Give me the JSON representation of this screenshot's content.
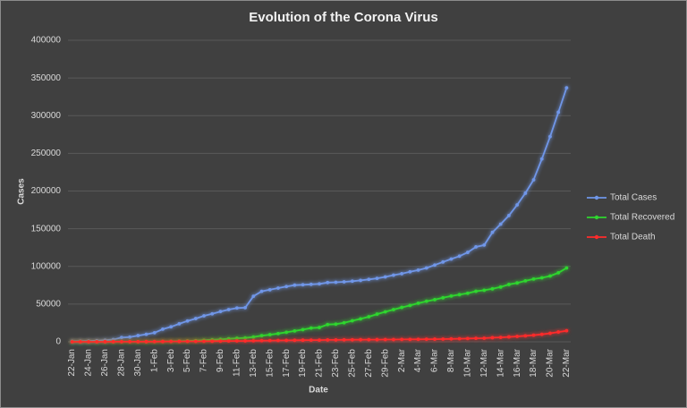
{
  "chart_data": {
    "type": "line",
    "title": "Evolution of the Corona Virus",
    "x_label": "Date",
    "y_label": "Cases",
    "categories": [
      "22-Jan",
      null,
      "24-Jan",
      null,
      "26-Jan",
      null,
      "28-Jan",
      null,
      "30-Jan",
      null,
      "1-Feb",
      null,
      "3-Feb",
      null,
      "5-Feb",
      null,
      "7-Feb",
      null,
      "9-Feb",
      null,
      "11-Feb",
      null,
      "13-Feb",
      null,
      "15-Feb",
      null,
      "17-Feb",
      null,
      "19-Feb",
      null,
      "21-Feb",
      null,
      "23-Feb",
      null,
      "25-Feb",
      null,
      "27-Feb",
      null,
      "29-Feb",
      null,
      "2-Mar",
      null,
      "4-Mar",
      null,
      "6-Mar",
      null,
      "8-Mar",
      null,
      "10-Mar",
      null,
      "12-Mar",
      null,
      "14-Mar",
      null,
      "16-Mar",
      null,
      "18-Mar",
      null,
      "20-Mar",
      null,
      "22-Mar"
    ],
    "series": [
      {
        "name": "Total Cases",
        "color": "#6f96e8",
        "values": [
          555,
          654,
          941,
          1434,
          2118,
          2927,
          5578,
          6166,
          8234,
          9927,
          12038,
          16787,
          19881,
          23892,
          27635,
          30794,
          34391,
          37120,
          40150,
          42762,
          44802,
          45221,
          60368,
          66885,
          69030,
          71224,
          73258,
          75136,
          75639,
          76197,
          76819,
          78572,
          78958,
          79561,
          80406,
          81388,
          82746,
          84112,
          86011,
          88369,
          90306,
          92840,
          95120,
          97886,
          101801,
          105847,
          109821,
          113590,
          118620,
          125875,
          128352,
          145205,
          156101,
          167454,
          181574,
          197102,
          214821,
          242570,
          272208,
          304507,
          336953
        ]
      },
      {
        "name": "Total Recovered",
        "color": "#2ed62e",
        "values": [
          28,
          30,
          36,
          39,
          52,
          61,
          107,
          126,
          143,
          222,
          284,
          472,
          623,
          852,
          1124,
          1487,
          2011,
          2616,
          3244,
          3946,
          4683,
          5150,
          6295,
          8058,
          9395,
          10865,
          12583,
          14352,
          16121,
          18177,
          18890,
          22886,
          23394,
          25227,
          27905,
          30384,
          33277,
          36711,
          39782,
          42716,
          45602,
          48228,
          51170,
          53796,
          55865,
          58358,
          60695,
          62512,
          64404,
          67003,
          68324,
          70251,
          72624,
          76034,
          78088,
          80840,
          83207,
          84854,
          87256,
          91499,
          97882
        ]
      },
      {
        "name": "Total Death",
        "color": "#ff2b2b",
        "values": [
          17,
          18,
          26,
          42,
          56,
          82,
          131,
          133,
          171,
          213,
          259,
          362,
          426,
          492,
          564,
          634,
          719,
          806,
          906,
          1013,
          1113,
          1118,
          1371,
          1523,
          1666,
          1770,
          1868,
          2007,
          2122,
          2247,
          2251,
          2458,
          2469,
          2629,
          2708,
          2770,
          2814,
          2872,
          2941,
          2996,
          3085,
          3160,
          3254,
          3348,
          3460,
          3558,
          3802,
          3988,
          4262,
          4615,
          4720,
          5404,
          5819,
          6440,
          7126,
          7905,
          8733,
          9867,
          11299,
          12973,
          14651
        ]
      }
    ],
    "ylim": [
      0,
      400000
    ],
    "yticks": [
      0,
      50000,
      100000,
      150000,
      200000,
      250000,
      300000,
      350000,
      400000
    ],
    "grid": true,
    "legend": "right"
  }
}
